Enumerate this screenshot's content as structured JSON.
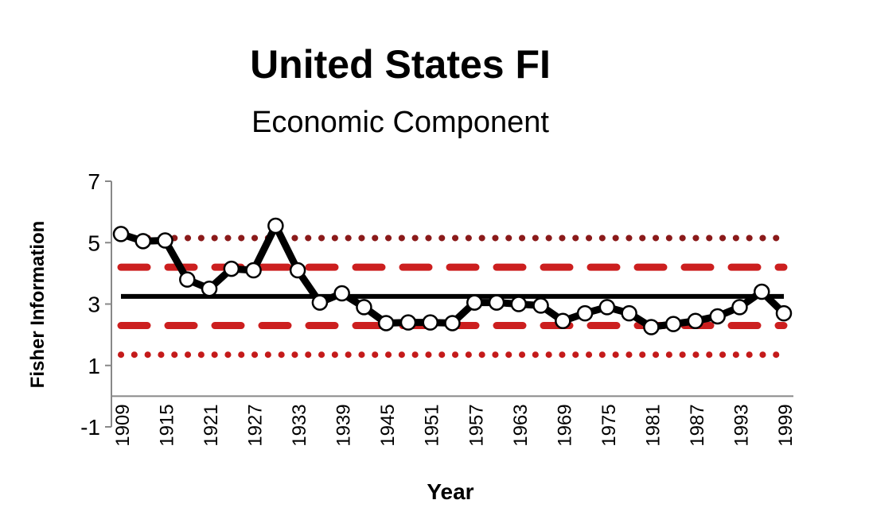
{
  "chart_data": {
    "type": "line",
    "title": "United States FI",
    "subtitle": "Economic Component",
    "xlabel": "Year",
    "ylabel": "Fisher Information",
    "ylim": [
      -1,
      7
    ],
    "yticks": [
      -1,
      1,
      3,
      5,
      7
    ],
    "xtick_labels": [
      "1909",
      "1915",
      "1921",
      "1927",
      "1933",
      "1939",
      "1945",
      "1951",
      "1957",
      "1963",
      "1969",
      "1975",
      "1981",
      "1987",
      "1993",
      "1999"
    ],
    "grid": false,
    "x": [
      1909,
      1912,
      1915,
      1918,
      1921,
      1924,
      1927,
      1930,
      1933,
      1936,
      1939,
      1942,
      1945,
      1948,
      1951,
      1954,
      1957,
      1960,
      1963,
      1966,
      1969,
      1972,
      1975,
      1978,
      1981,
      1984,
      1987,
      1990,
      1993,
      1996,
      1999
    ],
    "series": [
      {
        "name": "Fisher Information",
        "values": [
          5.28,
          5.05,
          5.07,
          3.8,
          3.5,
          4.15,
          4.1,
          5.55,
          4.1,
          3.05,
          3.35,
          2.9,
          2.38,
          2.4,
          2.4,
          2.38,
          3.05,
          3.05,
          3.0,
          2.95,
          2.45,
          2.7,
          2.9,
          2.7,
          2.25,
          2.35,
          2.45,
          2.6,
          2.9,
          3.4,
          2.7
        ],
        "color": "#000000"
      }
    ],
    "reference_lines": [
      {
        "name": "mean",
        "value": 3.25,
        "style": "solid",
        "color": "#000000"
      },
      {
        "name": "upper-1sd",
        "value": 4.2,
        "style": "dashed",
        "color": "#cc1f1f"
      },
      {
        "name": "lower-1sd",
        "value": 2.3,
        "style": "dashed",
        "color": "#cc1f1f"
      },
      {
        "name": "upper-2sd",
        "value": 5.15,
        "style": "dotted",
        "color": "#8b1a1a"
      },
      {
        "name": "lower-2sd",
        "value": 1.35,
        "style": "dotted",
        "color": "#c41a1a"
      }
    ]
  }
}
